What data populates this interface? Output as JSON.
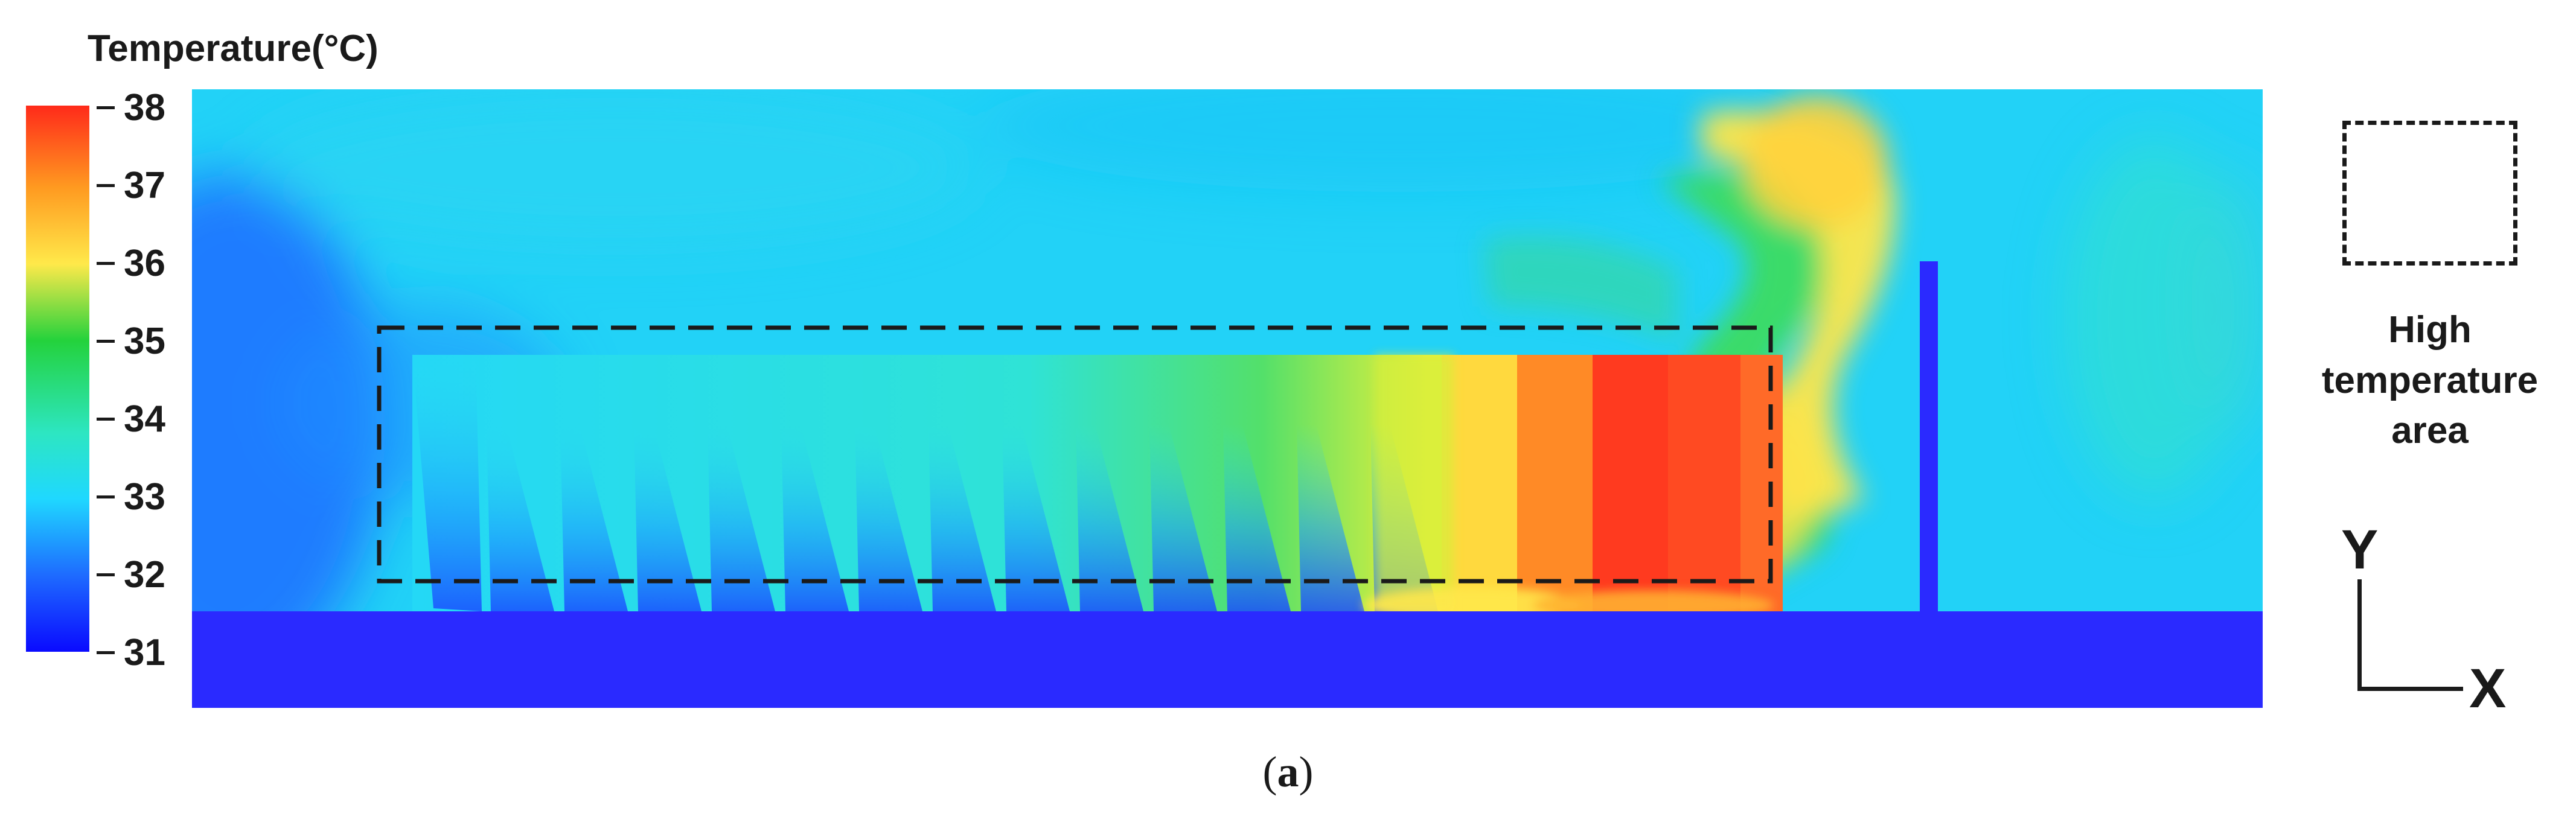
{
  "colorbar": {
    "title": "Temperature(°C)",
    "min": 31,
    "max": 38,
    "ticks": [
      "38",
      "37",
      "36",
      "35",
      "34",
      "33",
      "32",
      "31"
    ],
    "colors": [
      "#0a0aff",
      "#1e6bff",
      "#1fd8ff",
      "#2de6c2",
      "#24d23c",
      "#ffe94a",
      "#ff9a20",
      "#ff2a1a"
    ]
  },
  "legend": {
    "label_lines": [
      "High",
      "temperature",
      "area"
    ]
  },
  "axes": {
    "y": "Y",
    "x": "X"
  },
  "caption": {
    "open": "(",
    "letter": "a",
    "close": ")"
  }
}
